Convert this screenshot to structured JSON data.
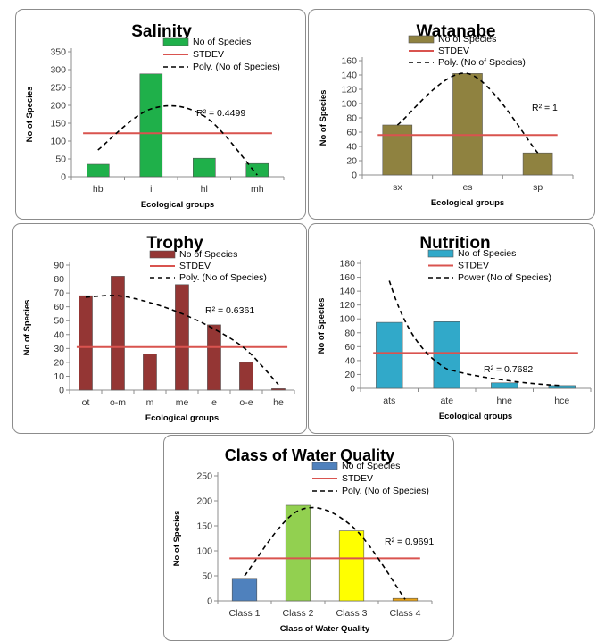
{
  "colors": {
    "stdev": "#d9534f",
    "trend": "#000000",
    "axis": "#8c8c8c",
    "grid": "#c8c8c8"
  },
  "legend_labels": {
    "species": "No of Species",
    "stdev": "STDEV",
    "poly": "Poly. (No of Species)",
    "power": "Power (No of Species)"
  },
  "chart_data": [
    {
      "id": "salinity",
      "type": "bar",
      "title": "Salinity",
      "xlabel": "Ecological groups",
      "ylabel": "No of Species",
      "categories": [
        "hb",
        "i",
        "hl",
        "mh"
      ],
      "series": [
        {
          "name": "No of Species",
          "values": [
            35,
            288,
            52,
            37
          ]
        }
      ],
      "stdev": 122,
      "ylim": [
        0,
        350
      ],
      "yticks": [
        0,
        50,
        100,
        150,
        200,
        250,
        300,
        350
      ],
      "trendline": {
        "type": "poly",
        "r2_label": "R² = 0.4499",
        "values": [
          75,
          190,
          170,
          5
        ]
      },
      "bar_colors": [
        "#1fb04a"
      ],
      "grid": true,
      "legend": "top-right"
    },
    {
      "id": "watanabe",
      "type": "bar",
      "title": "Watanabe",
      "xlabel": "Ecological groups",
      "ylabel": "No of Species",
      "categories": [
        "sx",
        "es",
        "sp"
      ],
      "series": [
        {
          "name": "No of Species",
          "values": [
            70,
            142,
            31
          ]
        }
      ],
      "stdev": 56,
      "ylim": [
        0,
        160
      ],
      "yticks": [
        0,
        20,
        40,
        60,
        80,
        100,
        120,
        140,
        160
      ],
      "trendline": {
        "type": "poly",
        "r2_label": "R² = 1",
        "values": [
          70,
          142,
          31
        ]
      },
      "bar_colors": [
        "#8f8240"
      ],
      "grid": true,
      "legend": "top-right"
    },
    {
      "id": "trophy",
      "type": "bar",
      "title": "Trophy",
      "xlabel": "Ecological groups",
      "ylabel": "No of Species",
      "categories": [
        "ot",
        "o-m",
        "m",
        "me",
        "e",
        "o-e",
        "he"
      ],
      "series": [
        {
          "name": "No of Species",
          "values": [
            68,
            82,
            26,
            76,
            47,
            20,
            1
          ]
        }
      ],
      "stdev": 31,
      "ylim": [
        0,
        90
      ],
      "yticks": [
        0,
        10,
        20,
        30,
        40,
        50,
        60,
        70,
        80,
        90
      ],
      "trendline": {
        "type": "poly",
        "r2_label": "R² = 0.6361",
        "values": [
          67,
          68,
          63,
          55,
          44,
          29,
          4
        ]
      },
      "bar_colors": [
        "#943634"
      ],
      "grid": true,
      "legend": "top-right"
    },
    {
      "id": "nutrition",
      "type": "bar",
      "title": "Nutrition",
      "xlabel": "Ecological groups",
      "ylabel": "No of Species",
      "categories": [
        "ats",
        "ate",
        "hne",
        "hce"
      ],
      "series": [
        {
          "name": "No of Species",
          "values": [
            95,
            96,
            8,
            4
          ]
        }
      ],
      "stdev": 51,
      "ylim": [
        0,
        180
      ],
      "yticks": [
        0,
        20,
        40,
        60,
        80,
        100,
        120,
        140,
        160,
        180
      ],
      "trendline": {
        "type": "power",
        "r2_label": "R² = 0.7682",
        "values": [
          155,
          28,
          12,
          4
        ]
      },
      "bar_colors": [
        "#31a9c9"
      ],
      "grid": true,
      "legend": "top-right"
    },
    {
      "id": "water",
      "type": "bar",
      "title": "Class of Water Quality",
      "xlabel": "Class of Water Quality",
      "ylabel": "No of Species",
      "categories": [
        "Class 1",
        "Class 2",
        "Class 3",
        "Class 4"
      ],
      "series": [
        {
          "name": "No of Species",
          "values": [
            45,
            191,
            140,
            5
          ]
        }
      ],
      "stdev": 85,
      "ylim": [
        0,
        250
      ],
      "yticks": [
        0,
        50,
        100,
        150,
        200,
        250
      ],
      "trendline": {
        "type": "poly",
        "r2_label": "R² = 0.9691",
        "values": [
          50,
          180,
          150,
          3
        ]
      },
      "bar_colors": [
        "#4f81bd",
        "#92d050",
        "#ffff00",
        "#e8a317"
      ],
      "grid": true,
      "legend": "top-right"
    }
  ]
}
